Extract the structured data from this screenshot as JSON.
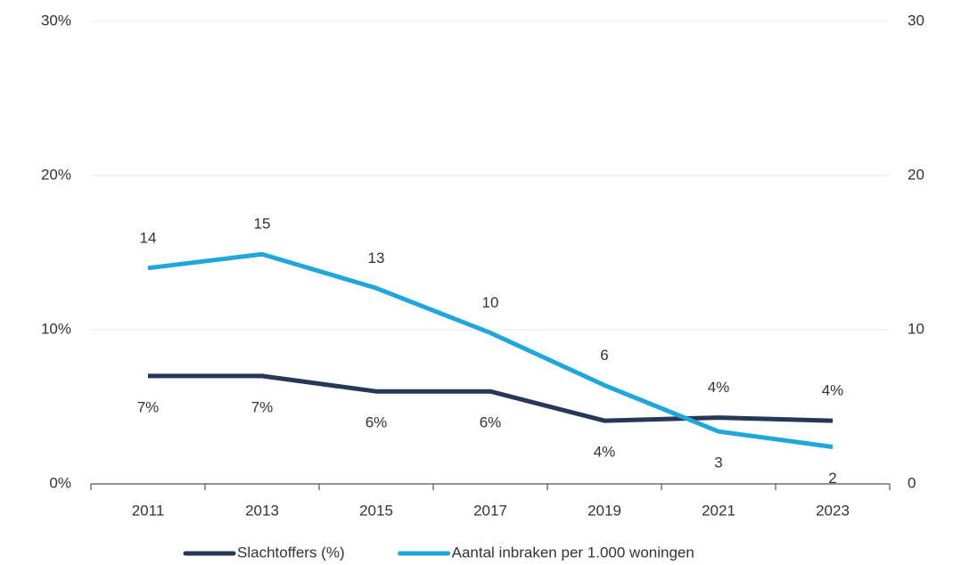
{
  "chart_data": {
    "type": "line",
    "categories": [
      "2011",
      "2013",
      "2015",
      "2017",
      "2019",
      "2021",
      "2023"
    ],
    "series": [
      {
        "name": "Slachtoffers (%)",
        "color": "#253858",
        "axis": "y",
        "values": [
          7,
          7,
          6,
          6,
          4.1,
          4.3,
          4.1
        ],
        "value_labels": [
          "7%",
          "7%",
          "6%",
          "6%",
          "4%",
          "4%",
          "4%"
        ]
      },
      {
        "name": "Aantal inbraken per 1.000 woningen",
        "color": "#1fa6dc",
        "axis": "y2",
        "values": [
          14.0,
          14.9,
          12.7,
          9.8,
          6.4,
          3.4,
          2.4
        ],
        "value_labels": [
          "14",
          "15",
          "13",
          "10",
          "6",
          "3",
          "2"
        ]
      }
    ],
    "ylim": [
      0,
      30
    ],
    "yticks": [
      {
        "value": 0,
        "label": "0%"
      },
      {
        "value": 10,
        "label": "10%"
      },
      {
        "value": 20,
        "label": "20%"
      },
      {
        "value": 30,
        "label": "30%"
      }
    ],
    "y2lim": [
      0,
      30
    ],
    "y2ticks": [
      0,
      10,
      20,
      30
    ],
    "grid": true,
    "legend": "bottom"
  }
}
